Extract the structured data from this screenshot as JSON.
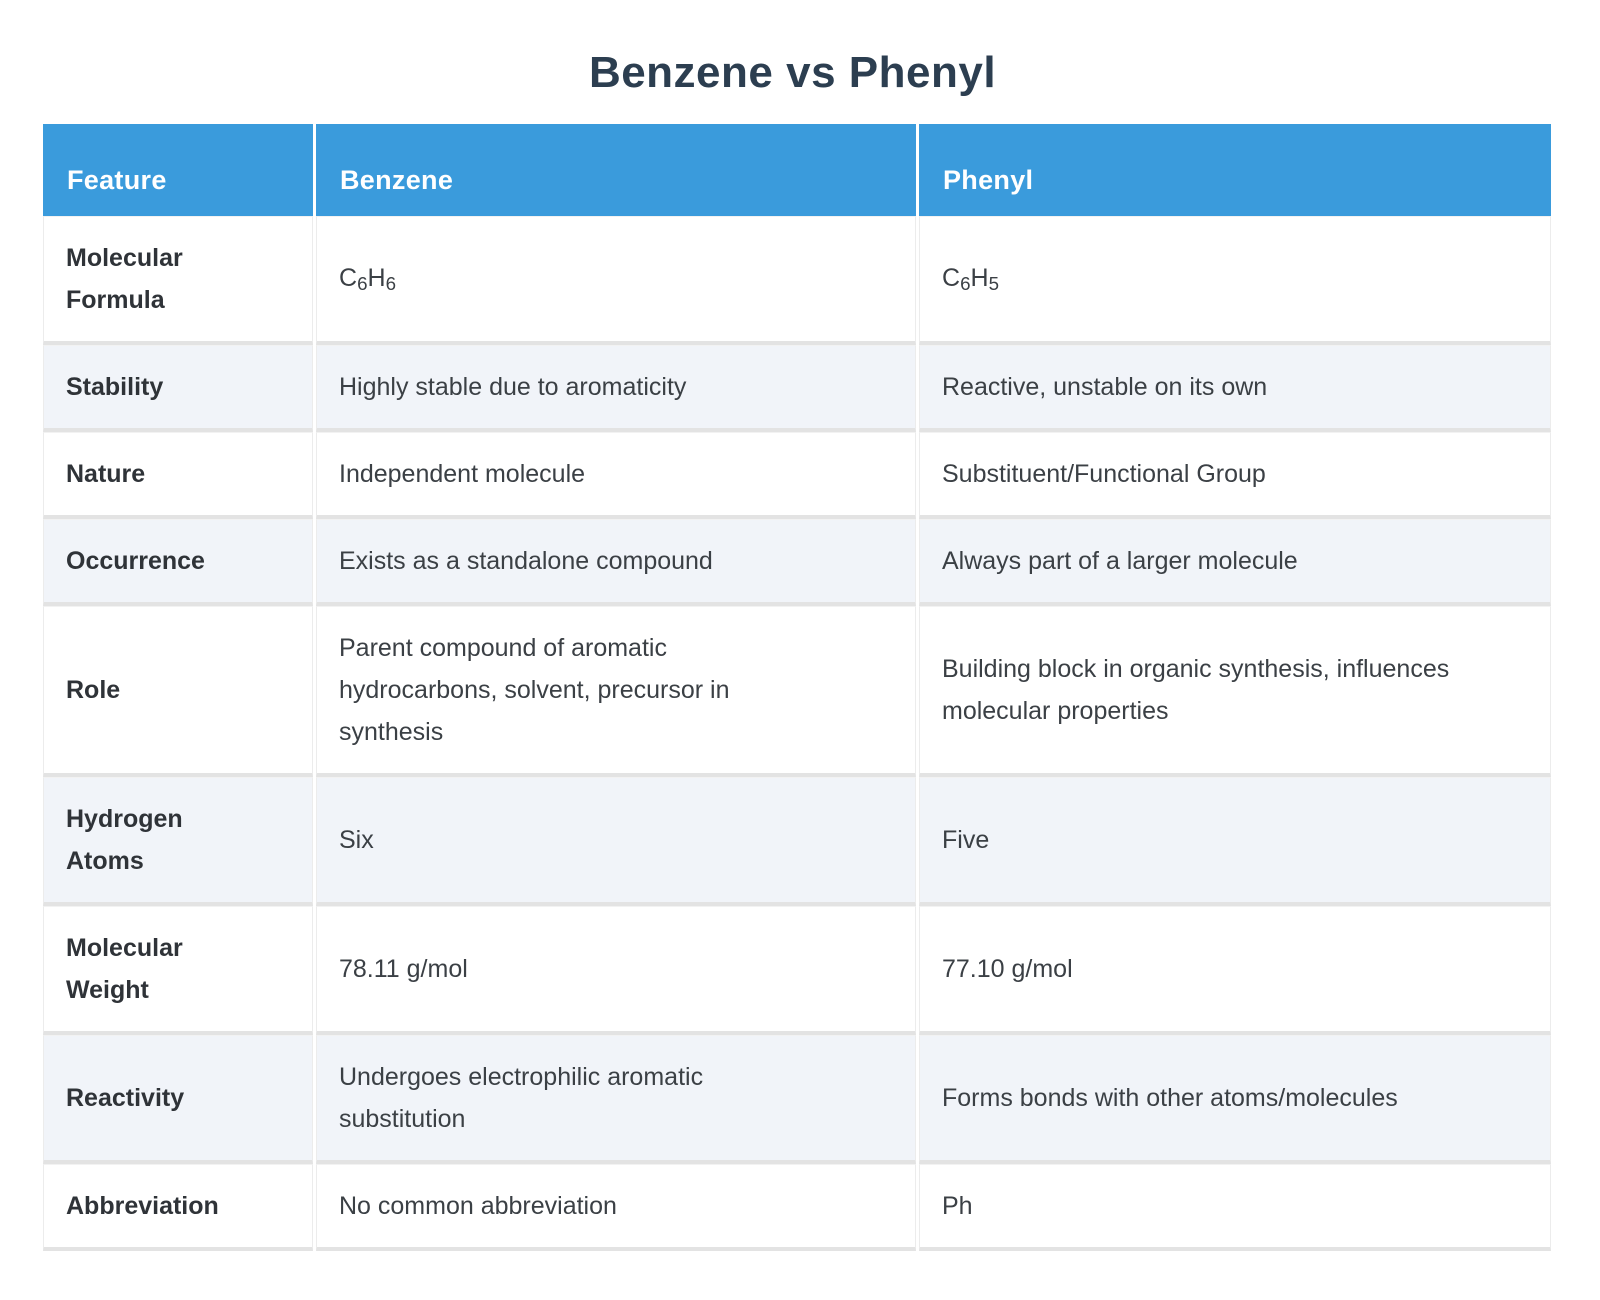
{
  "page": {
    "title": "Benzene vs Phenyl"
  },
  "colors": {
    "header_background": "#3a9bdc",
    "header_text": "#ffffff",
    "title_text": "#2c3e50",
    "striped_row_background": "#f1f4f9",
    "body_text": "#3b4045",
    "row_divider": "#e3e3e3"
  },
  "table": {
    "headers": {
      "feature": "Feature",
      "benzene": "Benzene",
      "phenyl": "Phenyl"
    },
    "rows": [
      {
        "feature": "Molecular Formula",
        "benzene": {
          "b1": "C",
          "s1": "6",
          "b2": "H",
          "s2": "6"
        },
        "phenyl": {
          "b1": "C",
          "s1": "6",
          "b2": "H",
          "s2": "5"
        }
      },
      {
        "feature": "Stability",
        "benzene": "Highly stable due to aromaticity",
        "phenyl": "Reactive, unstable on its own"
      },
      {
        "feature": "Nature",
        "benzene": "Independent molecule",
        "phenyl": "Substituent/Functional Group"
      },
      {
        "feature": "Occurrence",
        "benzene": "Exists as a standalone compound",
        "phenyl": "Always part of a larger molecule"
      },
      {
        "feature": "Role",
        "benzene": "Parent compound of aromatic hydrocarbons, solvent, precursor in synthesis",
        "phenyl": "Building block in organic synthesis, influences molecular properties"
      },
      {
        "feature": "Hydrogen Atoms",
        "benzene": "Six",
        "phenyl": "Five"
      },
      {
        "feature": "Molecular Weight",
        "benzene": "78.11 g/mol",
        "phenyl": "77.10 g/mol"
      },
      {
        "feature": "Reactivity",
        "benzene": "Undergoes electrophilic aromatic substitution",
        "phenyl": "Forms bonds with other atoms/molecules"
      },
      {
        "feature": "Abbreviation",
        "benzene": "No common abbreviation",
        "phenyl": "Ph"
      }
    ]
  }
}
